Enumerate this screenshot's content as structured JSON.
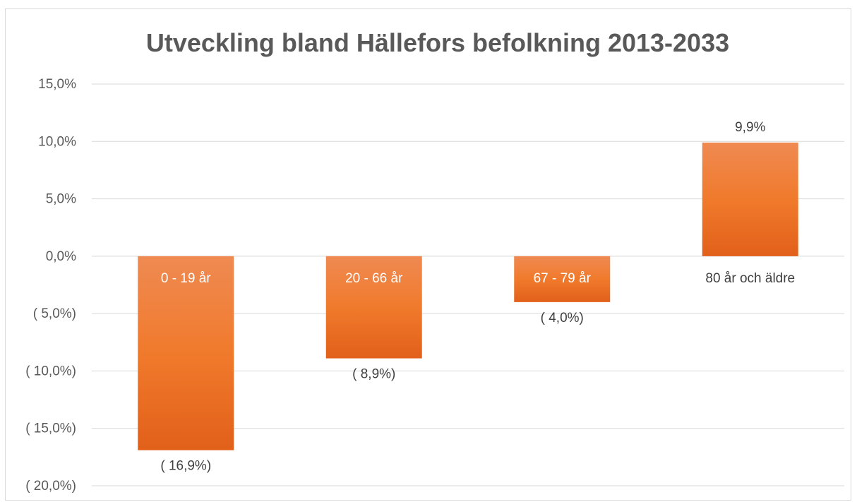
{
  "chart_data": {
    "type": "bar",
    "title": "Utveckling bland Hällefors befolkning 2013-2033",
    "categories": [
      "0 - 19 år",
      "20 - 66 år",
      "67 - 79 år",
      "80 år och äldre"
    ],
    "values": [
      -16.9,
      -8.9,
      -4.0,
      9.9
    ],
    "data_labels": [
      "( 16,9%)",
      "( 8,9%)",
      "( 4,0%)",
      "9,9%"
    ],
    "ylim": [
      -20,
      15
    ],
    "yticks": [
      15,
      10,
      5,
      0,
      -5,
      -10,
      -15,
      -20
    ],
    "ytick_labels": [
      "15,0%",
      "10,0%",
      "5,0%",
      "0,0%",
      "( 5,0%)",
      "( 10,0%)",
      "( 15,0%)",
      "( 20,0%)"
    ],
    "grid": true,
    "bar_color": "#ee7a2f",
    "bar_color_dark": "#e2621a",
    "gridline_color": "#d9d9d9",
    "text_color": "#595959"
  }
}
